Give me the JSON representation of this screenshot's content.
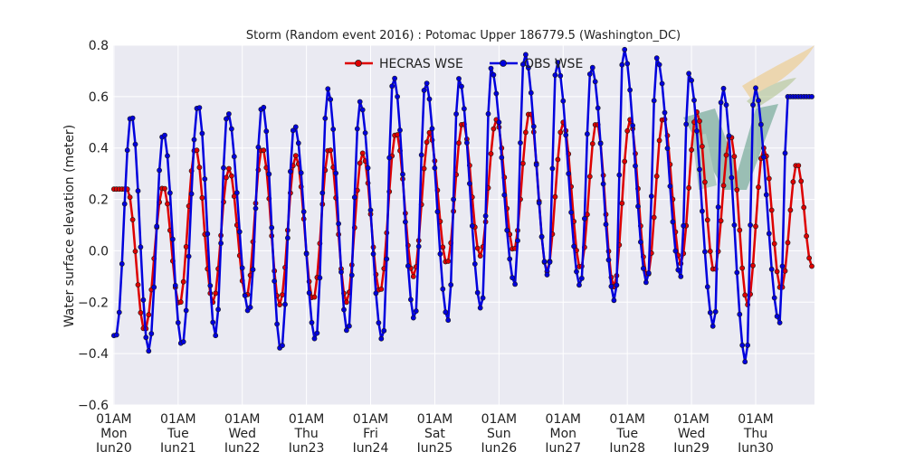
{
  "chart_data": {
    "type": "line",
    "title": "Storm (Random event 2016) : Potomac Upper 186779.5 (Washington_DC)",
    "xlabel": "",
    "ylabel": "Water surface elevation (meter)",
    "ylim": [
      -0.6,
      0.8
    ],
    "yticks": [
      "−0.6",
      "−0.4",
      "−0.2",
      "0.0",
      "0.2",
      "0.4",
      "0.6",
      "0.8"
    ],
    "xrange_hours": [
      -0.3,
      262
    ],
    "x_unit": "hours after 2016-06-20 01:00",
    "xticks": [
      {
        "hour": 0,
        "lines": [
          "01AM",
          "Mon",
          "Jun20"
        ]
      },
      {
        "hour": 24,
        "lines": [
          "01AM",
          "Tue",
          "Jun21"
        ]
      },
      {
        "hour": 48,
        "lines": [
          "01AM",
          "Wed",
          "Jun22"
        ]
      },
      {
        "hour": 72,
        "lines": [
          "01AM",
          "Thu",
          "Jun23"
        ]
      },
      {
        "hour": 96,
        "lines": [
          "01AM",
          "Fri",
          "Jun24"
        ]
      },
      {
        "hour": 120,
        "lines": [
          "01AM",
          "Sat",
          "Jun25"
        ]
      },
      {
        "hour": 144,
        "lines": [
          "01AM",
          "Sun",
          "Jun26"
        ]
      },
      {
        "hour": 168,
        "lines": [
          "01AM",
          "Mon",
          "Jun27"
        ]
      },
      {
        "hour": 192,
        "lines": [
          "01AM",
          "Tue",
          "Jun28"
        ]
      },
      {
        "hour": 216,
        "lines": [
          "01AM",
          "Wed",
          "Jun29"
        ]
      },
      {
        "hour": 240,
        "lines": [
          "01AM",
          "Thu",
          "Jun30"
        ]
      }
    ],
    "legend_position": "upper-center",
    "grid": true,
    "series": [
      {
        "name": "HECRAS WSE",
        "color": "#dd0000",
        "peaks": [
          [
            5,
            0.24
          ],
          [
            18.5,
            0.25
          ],
          [
            30.5,
            0.4
          ],
          [
            43,
            0.32
          ],
          [
            55.5,
            0.4
          ],
          [
            68,
            0.37
          ],
          [
            80.5,
            0.4
          ],
          [
            93,
            0.38
          ],
          [
            105.5,
            0.46
          ],
          [
            118,
            0.46
          ],
          [
            130.5,
            0.5
          ],
          [
            143,
            0.51
          ],
          [
            155.5,
            0.54
          ],
          [
            168,
            0.5
          ],
          [
            180.5,
            0.5
          ],
          [
            193,
            0.51
          ],
          [
            205.5,
            0.52
          ],
          [
            218,
            0.54
          ],
          [
            230.5,
            0.45
          ],
          [
            243,
            0.4
          ],
          [
            255.5,
            0.34
          ]
        ],
        "troughs": [
          [
            11.5,
            -0.31
          ],
          [
            24.5,
            -0.21
          ],
          [
            37,
            -0.2
          ],
          [
            49.5,
            -0.18
          ],
          [
            62,
            -0.21
          ],
          [
            74.5,
            -0.19
          ],
          [
            87,
            -0.2
          ],
          [
            99.5,
            -0.16
          ],
          [
            112,
            -0.1
          ],
          [
            124.5,
            -0.05
          ],
          [
            137,
            -0.02
          ],
          [
            149.5,
            0.0
          ],
          [
            162,
            -0.08
          ],
          [
            174.5,
            -0.07
          ],
          [
            187,
            -0.14
          ],
          [
            199.5,
            -0.1
          ],
          [
            212,
            -0.05
          ],
          [
            224.5,
            -0.08
          ],
          [
            237,
            -0.21
          ],
          [
            249.5,
            -0.15
          ],
          [
            261,
            -0.06
          ]
        ]
      },
      {
        "name": "OBS WSE",
        "color": "#0000dd",
        "peaks": [
          [
            6.5,
            0.53
          ],
          [
            18.5,
            0.46
          ],
          [
            31.5,
            0.57
          ],
          [
            42.5,
            0.54
          ],
          [
            55.5,
            0.57
          ],
          [
            67.5,
            0.49
          ],
          [
            80,
            0.63
          ],
          [
            92,
            0.58
          ],
          [
            104.5,
            0.68
          ],
          [
            116.5,
            0.66
          ],
          [
            129,
            0.67
          ],
          [
            141,
            0.71
          ],
          [
            153.5,
            0.77
          ],
          [
            165.5,
            0.74
          ],
          [
            178.5,
            0.72
          ],
          [
            190.5,
            0.79
          ],
          [
            203,
            0.75
          ],
          [
            215,
            0.69
          ],
          [
            227.5,
            0.64
          ],
          [
            239.5,
            0.64
          ],
          [
            252,
            0.6
          ]
        ],
        "troughs": [
          [
            0.8,
            -0.33
          ],
          [
            13,
            -0.39
          ],
          [
            25.5,
            -0.37
          ],
          [
            38,
            -0.33
          ],
          [
            50.5,
            -0.24
          ],
          [
            62.5,
            -0.39
          ],
          [
            75.5,
            -0.35
          ],
          [
            87.5,
            -0.32
          ],
          [
            100.5,
            -0.35
          ],
          [
            112.5,
            -0.27
          ],
          [
            125,
            -0.27
          ],
          [
            137.5,
            -0.23
          ],
          [
            150,
            -0.13
          ],
          [
            162.5,
            -0.1
          ],
          [
            174.5,
            -0.14
          ],
          [
            187.5,
            -0.2
          ],
          [
            199.5,
            -0.13
          ],
          [
            212,
            -0.1
          ],
          [
            224.5,
            -0.3
          ],
          [
            236.5,
            -0.44
          ],
          [
            249,
            -0.28
          ]
        ]
      }
    ]
  }
}
